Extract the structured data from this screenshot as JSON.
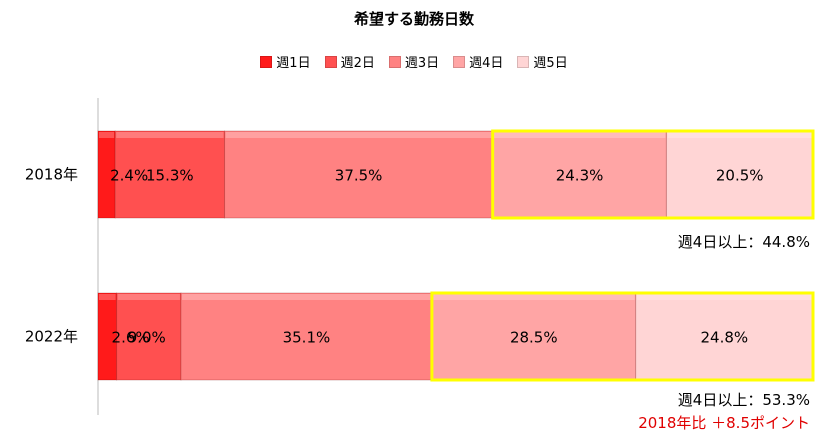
{
  "chart_data": {
    "type": "bar",
    "orientation": "horizontal",
    "stacked": true,
    "percent": true,
    "title": "希望する勤務日数",
    "legend_position": "top",
    "categories": [
      "2018年",
      "2022年"
    ],
    "series": [
      {
        "name": "週1日",
        "values": [
          2.4,
          2.6
        ],
        "labels": [
          "2.4%",
          "2.6%"
        ],
        "color": "#ff1a1a"
      },
      {
        "name": "週2日",
        "values": [
          15.3,
          9.0
        ],
        "labels": [
          "15.3%",
          "9.0%"
        ],
        "color": "#ff5050"
      },
      {
        "name": "週3日",
        "values": [
          37.5,
          35.1
        ],
        "labels": [
          "37.5%",
          "35.1%"
        ],
        "color": "#ff8282"
      },
      {
        "name": "週4日",
        "values": [
          24.3,
          28.5
        ],
        "labels": [
          "24.3%",
          "28.5%"
        ],
        "color": "#ffa5a5"
      },
      {
        "name": "週5日",
        "values": [
          20.5,
          24.8
        ],
        "labels": [
          "20.5%",
          "24.8%"
        ],
        "color": "#ffd5d5"
      }
    ],
    "annotations": [
      {
        "category": "2018年",
        "text": "週4日以上：44.8%",
        "highlight_series": [
          "週4日",
          "週5日"
        ]
      },
      {
        "category": "2022年",
        "text": "週4日以上：53.3%",
        "highlight_series": [
          "週4日",
          "週5日"
        ]
      }
    ],
    "highlight_color": "#ffff00",
    "footnote": {
      "text": "2018年比 ＋8.5ポイント",
      "color": "#e00000"
    }
  }
}
